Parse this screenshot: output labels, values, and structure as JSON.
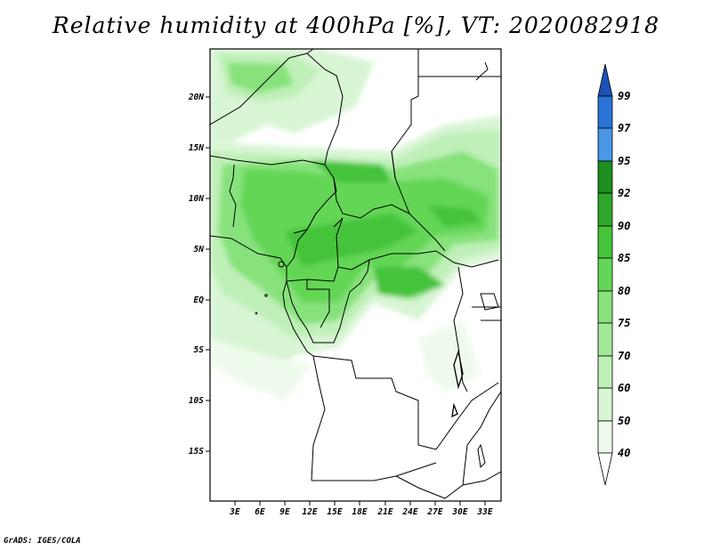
{
  "title": "Relative humidity at 400hPa [%], VT: 2020082918",
  "credit": "GrADS: IGES/COLA",
  "map": {
    "lat_labels": [
      "20N",
      "15N",
      "10N",
      "5N",
      "EQ",
      "5S",
      "10S",
      "15S"
    ],
    "lon_labels": [
      "3E",
      "6E",
      "9E",
      "12E",
      "15E",
      "18E",
      "21E",
      "24E",
      "27E",
      "30E",
      "33E"
    ]
  },
  "colorbar": {
    "levels": [
      "99",
      "97",
      "95",
      "92",
      "90",
      "85",
      "80",
      "75",
      "70",
      "60",
      "50",
      "40"
    ],
    "colors": {
      "40": "#eefbec",
      "50": "#d8f5d4",
      "60": "#bff0b8",
      "70": "#a3e99a",
      "75": "#87e27c",
      "80": "#63d657",
      "85": "#45c33b",
      "90": "#2ea82a",
      "92": "#1c8f1c",
      "95": "#4a97e6",
      "97": "#2a74d6",
      "99": "#1a52b8"
    }
  }
}
